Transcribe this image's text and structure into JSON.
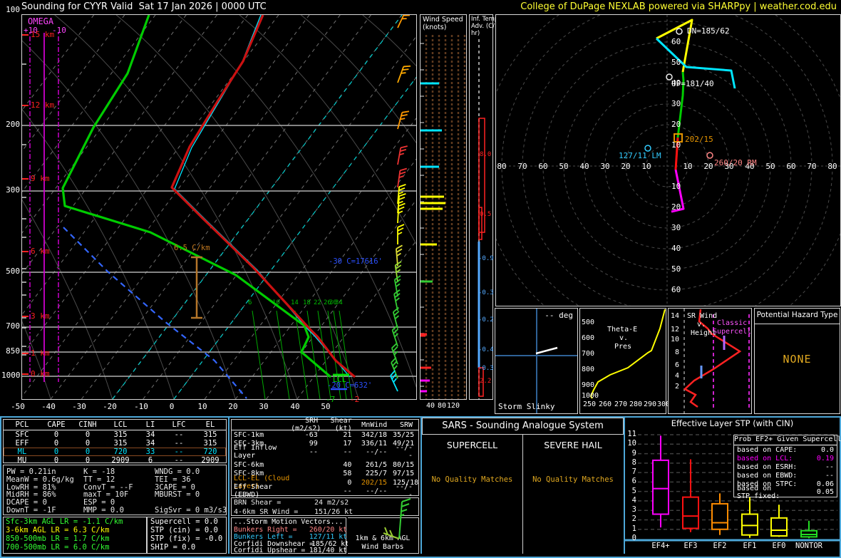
{
  "palette": {
    "frame_blue": "#4da7d8",
    "gold": "#e0a800",
    "orange": "#e59400",
    "magenta": "#ff00ff",
    "salmon": "#ff8585",
    "cyan": "#00e5ff",
    "light_blue": "#55aaff",
    "green": "#00cc00",
    "yellow": "#ffff00",
    "red": "#ff2222",
    "profile_blue": "#2b50ff"
  },
  "header": {
    "title": "Sounding for CYYR Valid  Sat 17 Jan 2026 | 0000 UTC",
    "credit": "College of DuPage NEXLAB powered via SHARPpy | weather.cod.edu"
  },
  "skewt": {
    "pressure_labels": [
      "100",
      "200",
      "300",
      "500",
      "700",
      "850",
      "1000"
    ],
    "height_labels": [
      "15 km",
      "12 km",
      "9 km",
      "6 km",
      "3 km",
      "1 km",
      "0 km"
    ],
    "omega_label": "OMEGA",
    "omega_plus": "+10",
    "omega_minus": "-10",
    "axis_labels": [
      "-50",
      "-40",
      "-30",
      "-20",
      "-10",
      "0",
      "10",
      "20",
      "30",
      "40",
      "50"
    ],
    "mixing_labels": [
      "6",
      "10",
      "14",
      "18",
      "22",
      "26",
      "30",
      "34"
    ],
    "lapse_marker": "6.5 C/km",
    "minus30_marker": "-30 C=17616'",
    "lcl_marker": "LCL",
    "minus20_marker": "-20 C=632'",
    "sfc_dewpoint": "-7",
    "sfc_temp": "-2"
  },
  "wind_panel": {
    "title_lines": [
      "Wind Speed",
      "(knots)"
    ],
    "axis_labels": [
      "40",
      "80",
      "120"
    ]
  },
  "advection_panel": {
    "title_lines": [
      "Inf. Temp.",
      "Adv. (C/",
      "hr)"
    ],
    "values": [
      {
        "label": "8.0",
        "sign": "pos"
      },
      {
        "label": "0.5",
        "sign": "pos"
      },
      {
        "label": "-0.9",
        "sign": "neg"
      },
      {
        "label": "-0.3",
        "sign": "neg"
      },
      {
        "label": "-0.2",
        "sign": "neg"
      },
      {
        "label": "-0.4",
        "sign": "neg"
      },
      {
        "label": "-0.3",
        "sign": "neg"
      },
      {
        "label": "2.2",
        "sign": "pos"
      }
    ]
  },
  "hodograph": {
    "left_labels": [
      "80",
      "70",
      "60",
      "50",
      "40",
      "30",
      "20",
      "10"
    ],
    "right_labels": [
      "10",
      "20",
      "30",
      "40",
      "50",
      "60",
      "70",
      "80"
    ],
    "vert_labels": [
      "10",
      "20",
      "30",
      "40",
      "50",
      "60"
    ],
    "markers": {
      "dn": "DN=185/62",
      "up": "UP=181/40",
      "cloud": "202/15",
      "lm": "127/11 LM",
      "rm": "260/20 RM"
    }
  },
  "insets": {
    "slinky": {
      "deg": "-- deg",
      "title": "Storm Slinky"
    },
    "thetae": {
      "title_lines": [
        "Theta-E",
        "v.",
        "Pres"
      ],
      "y_labels": [
        "500",
        "600",
        "700",
        "800",
        "900",
        "1000"
      ],
      "x_labels": [
        "250",
        "260",
        "270",
        "280",
        "290",
        "300"
      ]
    },
    "srwind": {
      "title_lines": [
        "SR Wind",
        "v.",
        "Height"
      ],
      "y_labels": [
        "14",
        "12",
        "10",
        "8",
        "6",
        "4",
        "2"
      ],
      "annotation_lines": [
        "Classic",
        "Supercell"
      ]
    },
    "hazard": {
      "title": "Potential Hazard Type",
      "value": "NONE"
    }
  },
  "parcel_table": {
    "headers": [
      "PCL",
      "CAPE",
      "CINH",
      "LCL",
      "LI",
      "LFC",
      "EL"
    ],
    "rows": [
      {
        "cells": [
          "SFC",
          "0",
          "0",
          "315",
          "34",
          "--",
          "315"
        ],
        "accent": false
      },
      {
        "cells": [
          "EFF",
          "0",
          "0",
          "315",
          "34",
          "--",
          "315"
        ],
        "accent": false
      },
      {
        "cells": [
          "ML",
          "0",
          "0",
          "720",
          "33",
          "--",
          "720"
        ],
        "accent": true
      },
      {
        "cells": [
          "MU",
          "0",
          "0",
          "2909",
          "6",
          "--",
          "2909"
        ],
        "accent": false
      }
    ]
  },
  "thermo": {
    "col1": [
      "PW = 0.21in",
      "MeanW = 0.6g/kg",
      "LowRH = 81%",
      "MidRH = 86%",
      "DCAPE = 0",
      "DownT = -1F"
    ],
    "col2": [
      "K = -18",
      "TT = 12",
      "ConvT = --F",
      "maxT = 10F",
      "ESP = 0",
      "MMP = 0.0"
    ],
    "col3": [
      "WNDG = 0.0",
      "TEI = 36",
      "3CAPE = 0",
      "MBURST = 0",
      "",
      "SigSvr = 0 m3/s3"
    ]
  },
  "lapse_rates": [
    {
      "text": "Sfc-3km AGL LR = -1.1 C/km",
      "color": "#33ff33"
    },
    {
      "text": "3-6km AGL LR = 6.3 C/km",
      "color": "#ffff00"
    },
    {
      "text": "850-500mb LR = 1.7 C/km",
      "color": "#33ff33"
    },
    {
      "text": "700-500mb LR = 6.0 C/km",
      "color": "#33ff33"
    }
  ],
  "indices": [
    "Supercell = 0.0",
    "STP (cin) = 0.0",
    "STP (fix) = -0.0",
    "SHIP = 0.0"
  ],
  "kinematics": {
    "headers": [
      "",
      "SRH (m2/s2)",
      "Shear (kt)",
      "MnWind",
      "SRW"
    ],
    "rows": [
      {
        "cells": [
          "SFC-1km",
          "-63",
          "21",
          "342/18",
          "35/25"
        ],
        "accent": false,
        "spacer": false
      },
      {
        "cells": [
          "SFC-3km",
          "99",
          "17",
          "336/11",
          "49/21"
        ],
        "accent": false,
        "spacer": false
      },
      {
        "cells": [
          "Eff Inflow Layer",
          "--",
          "--",
          "--/--",
          "--/--"
        ],
        "accent": false,
        "spacer": true
      },
      {
        "cells": [
          "SFC-6km",
          "",
          "40",
          "261/5",
          "80/15"
        ],
        "accent": false,
        "spacer": false
      },
      {
        "cells": [
          "SFC-8km",
          "",
          "58",
          "225/7",
          "97/15"
        ],
        "accent": false,
        "spacer": false
      },
      {
        "cells": [
          "LCL-EL (Cloud Layer)",
          "",
          "0",
          "202/15",
          "125/18"
        ],
        "accent": true,
        "spacer": false
      },
      {
        "cells": [
          "Eff Shear (EBWD)",
          "",
          "--",
          "--/--",
          "--/--"
        ],
        "accent": false,
        "spacer": false
      }
    ],
    "brn_label": "BRN Shear =",
    "brn_value": "24 m2/s2",
    "sr46_label": "4-6km SR Wind =",
    "sr46_value": "151/26 kt",
    "motion_header": "...Storm Motion Vectors...",
    "vectors": [
      {
        "label": "Bunkers Right =",
        "value": "260/20 kt",
        "color": "#ff8585"
      },
      {
        "label": "Bunkers Left =",
        "value": "127/11 kt",
        "color": "#33ccff"
      },
      {
        "label": "Corfidi Downshear =",
        "value": "185/62 kt",
        "color": "#ffffff"
      },
      {
        "label": "Corfidi Upshear =",
        "value": "181/40 kt",
        "color": "#ffffff"
      }
    ],
    "barb_caption_lines": [
      "1km & 6km AGL",
      "Wind Barbs"
    ]
  },
  "sars": {
    "title": "SARS - Sounding Analogue System",
    "left_header": "SUPERCELL",
    "right_header": "SEVERE HAIL",
    "left_message": "No Quality Matches",
    "right_message": "No Quality Matches"
  },
  "chart_data": {
    "type": "box",
    "title": "Effective Layer STP (with CIN)",
    "ylim": [
      0,
      11
    ],
    "yticks": [
      "0",
      "1",
      "2",
      "3",
      "4",
      "5",
      "6",
      "7",
      "8",
      "9",
      "10",
      "11"
    ],
    "categories": [
      "EF4+",
      "EF3",
      "EF2",
      "EF1",
      "EF0",
      "NONTOR"
    ],
    "colors": [
      "#ff00ff",
      "#ff1111",
      "#ff8c00",
      "#ffff00",
      "#ffff00",
      "#22dd22"
    ],
    "boxes": [
      {
        "low": 1.2,
        "q1": 2.6,
        "median": 5.3,
        "q3": 8.3,
        "high": 10.9
      },
      {
        "low": 0.7,
        "q1": 1.1,
        "median": 2.4,
        "q3": 4.4,
        "high": 8.4
      },
      {
        "low": 0.4,
        "q1": 1.0,
        "median": 1.7,
        "q3": 3.7,
        "high": 4.8
      },
      {
        "low": 0.1,
        "q1": 0.4,
        "median": 1.4,
        "q3": 2.6,
        "high": 4.4
      },
      {
        "low": 0.2,
        "q1": 0.3,
        "median": 0.9,
        "q3": 2.2,
        "high": 3.6
      },
      {
        "low": 0.05,
        "q1": 0.2,
        "median": 0.45,
        "q3": 0.85,
        "high": 1.9
      }
    ],
    "legend": {
      "title": "Prob EF2+ Given Supercell",
      "rows": [
        {
          "label": "based on CAPE:",
          "value": "0.0",
          "highlight": false
        },
        {
          "label": "based on LCL:",
          "value": "0.19",
          "highlight": true
        },
        {
          "label": "based on ESRH:",
          "value": "--",
          "highlight": false
        },
        {
          "label": "based on EBWD:",
          "value": "--",
          "highlight": false
        },
        {
          "label": "based on STPC:",
          "value": "0.06",
          "highlight": false
        },
        {
          "label": "based on STP_fixed:",
          "value": "0.05",
          "highlight": false
        }
      ]
    }
  }
}
